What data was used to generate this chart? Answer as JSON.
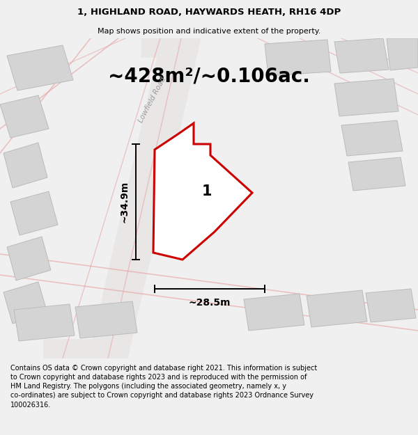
{
  "title": "1, HIGHLAND ROAD, HAYWARDS HEATH, RH16 4DP",
  "subtitle": "Map shows position and indicative extent of the property.",
  "area_text": "~428m²/~0.106ac.",
  "width_label": "~28.5m",
  "height_label": "~34.9m",
  "property_number": "1",
  "road_label": "Lowfield Road",
  "footer_text": "Contains OS data © Crown copyright and database right 2021. This information is subject to Crown copyright and database rights 2023 and is reproduced with the permission of HM Land Registry. The polygons (including the associated geometry, namely x, y co-ordinates) are subject to Crown copyright and database rights 2023 Ordnance Survey 100026316.",
  "bg_color": "#f0f0f0",
  "map_bg": "#f8f8f8",
  "plot_color": "#cc0000",
  "street_color": "#e8a0a0",
  "building_color": "#d4d4d4",
  "building_edge": "#bbbbbb",
  "title_fontsize": 9.5,
  "subtitle_fontsize": 8.0,
  "area_fontsize": 20,
  "label_fontsize": 10,
  "number_fontsize": 15,
  "road_label_fontsize": 7.5,
  "footer_fontsize": 7.0
}
